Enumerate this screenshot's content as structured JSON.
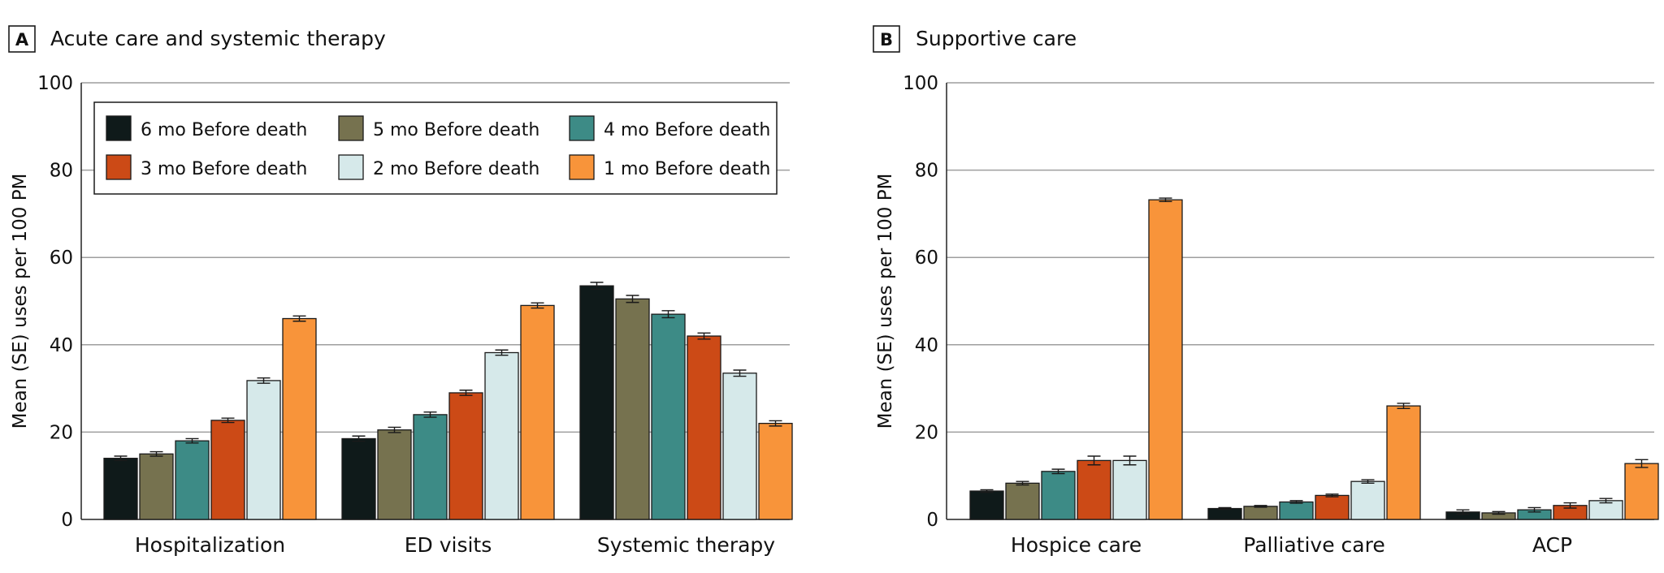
{
  "chart_data": [
    {
      "type": "bar",
      "panel_letter": "A",
      "title": "Acute care and systemic therapy",
      "ylabel": "Mean (SE) uses per 100 PM",
      "xlabel": "",
      "ylim": [
        0,
        100
      ],
      "yticks": [
        "0",
        "20",
        "40",
        "60",
        "80",
        "100"
      ],
      "grid": true,
      "legend_position": "top-left",
      "categories": [
        "Hospitalization",
        "ED visits",
        "Systemic therapy"
      ],
      "series": [
        {
          "name": "6 mo Before death",
          "color": "#0f1a1a",
          "values": [
            14,
            18.5,
            53.5
          ],
          "se": [
            0.5,
            0.6,
            0.8
          ]
        },
        {
          "name": "5 mo Before death",
          "color": "#76724f",
          "values": [
            15,
            20.5,
            50.5
          ],
          "se": [
            0.5,
            0.6,
            0.8
          ]
        },
        {
          "name": "4 mo Before death",
          "color": "#3d8b86",
          "values": [
            18,
            24,
            47
          ],
          "se": [
            0.5,
            0.6,
            0.8
          ]
        },
        {
          "name": "3 mo Before death",
          "color": "#cc4a16",
          "values": [
            22.7,
            29,
            42
          ],
          "se": [
            0.5,
            0.6,
            0.7
          ]
        },
        {
          "name": "2 mo Before death",
          "color": "#d6e9ea",
          "values": [
            31.8,
            38.2,
            33.5
          ],
          "se": [
            0.6,
            0.6,
            0.7
          ]
        },
        {
          "name": "1 mo Before death",
          "color": "#f8943a",
          "values": [
            46,
            49,
            22
          ],
          "se": [
            0.6,
            0.6,
            0.6
          ]
        }
      ]
    },
    {
      "type": "bar",
      "panel_letter": "B",
      "title": "Supportive care",
      "ylabel": "Mean (SE) uses per 100 PM",
      "xlabel": "",
      "ylim": [
        0,
        100
      ],
      "yticks": [
        "0",
        "20",
        "40",
        "60",
        "80",
        "100"
      ],
      "grid": true,
      "categories": [
        "Hospice care",
        "Palliative care",
        "ACP"
      ],
      "series": [
        {
          "name": "6 mo Before death",
          "color": "#0f1a1a",
          "values": [
            6.5,
            2.5,
            1.7
          ],
          "se": [
            0.3,
            0.2,
            0.5
          ]
        },
        {
          "name": "5 mo Before death",
          "color": "#76724f",
          "values": [
            8.3,
            3,
            1.5
          ],
          "se": [
            0.4,
            0.2,
            0.3
          ]
        },
        {
          "name": "4 mo Before death",
          "color": "#3d8b86",
          "values": [
            11,
            4,
            2.2
          ],
          "se": [
            0.5,
            0.3,
            0.5
          ]
        },
        {
          "name": "3 mo Before death",
          "color": "#cc4a16",
          "values": [
            13.5,
            5.5,
            3.2
          ],
          "se": [
            1.0,
            0.3,
            0.6
          ]
        },
        {
          "name": "2 mo Before death",
          "color": "#d6e9ea",
          "values": [
            13.5,
            8.7,
            4.3
          ],
          "se": [
            1.0,
            0.4,
            0.5
          ]
        },
        {
          "name": "1 mo Before death",
          "color": "#f8943a",
          "values": [
            73.2,
            26,
            12.8
          ],
          "se": [
            0.4,
            0.6,
            0.9
          ]
        }
      ]
    }
  ]
}
